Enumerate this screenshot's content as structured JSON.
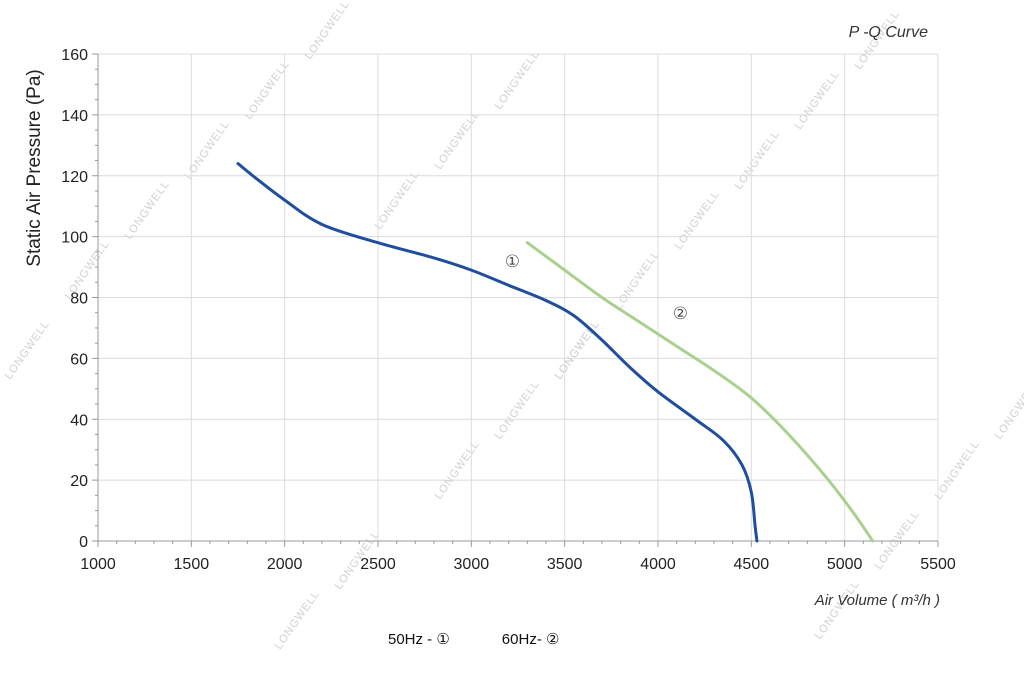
{
  "chart_data": {
    "type": "line",
    "title": "P -Q Curve",
    "xlabel": "Air Volume ( m³/h )",
    "ylabel": "Static Air Pressure  (Pa)",
    "xlim": [
      1000,
      5500
    ],
    "ylim": [
      0,
      160
    ],
    "x_ticks": [
      "1000",
      "1500",
      "2000",
      "2500",
      "3000",
      "3500",
      "4000",
      "4500",
      "5000",
      "5500"
    ],
    "y_ticks": [
      "0",
      "20",
      "40",
      "60",
      "80",
      "100",
      "120",
      "140",
      "160"
    ],
    "grid": true,
    "series": [
      {
        "name": "①",
        "color": "#1f4e9e",
        "points": [
          [
            1750,
            124
          ],
          [
            1850,
            119
          ],
          [
            2000,
            112
          ],
          [
            2200,
            104
          ],
          [
            2500,
            98
          ],
          [
            2800,
            93
          ],
          [
            3000,
            89
          ],
          [
            3200,
            84
          ],
          [
            3400,
            79
          ],
          [
            3550,
            74
          ],
          [
            3700,
            66
          ],
          [
            3850,
            57
          ],
          [
            4000,
            49
          ],
          [
            4200,
            40
          ],
          [
            4350,
            33
          ],
          [
            4450,
            25
          ],
          [
            4500,
            16
          ],
          [
            4520,
            5
          ],
          [
            4530,
            0
          ]
        ]
      },
      {
        "name": "②",
        "color": "#a9d18e",
        "points": [
          [
            3300,
            98
          ],
          [
            3500,
            89
          ],
          [
            3700,
            80
          ],
          [
            3900,
            72
          ],
          [
            4100,
            64
          ],
          [
            4300,
            56
          ],
          [
            4500,
            47
          ],
          [
            4700,
            35
          ],
          [
            4900,
            21
          ],
          [
            5050,
            9
          ],
          [
            5150,
            0
          ]
        ]
      }
    ],
    "watermark": "LONGWELL"
  },
  "legend": {
    "item1": "50Hz - ①",
    "item2": "60Hz- ②"
  }
}
